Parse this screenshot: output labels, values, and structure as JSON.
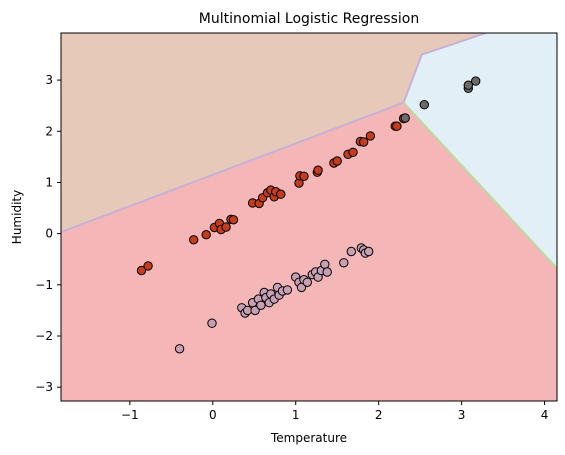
{
  "chart_data": {
    "type": "scatter",
    "title": "Multinomial Logistic Regression",
    "xlabel": "Temperature",
    "ylabel": "Humidity",
    "xlim": [
      -1.83,
      4.15
    ],
    "ylim": [
      -3.27,
      3.92
    ],
    "xticks": [
      "−1",
      "0",
      "1",
      "2",
      "3",
      "4"
    ],
    "xtick_values": [
      -1,
      0,
      1,
      2,
      3,
      4
    ],
    "yticks": [
      "−3",
      "−2",
      "−1",
      "0",
      "1",
      "2",
      "3"
    ],
    "ytick_values": [
      -3,
      -2,
      -1,
      0,
      1,
      2,
      3
    ],
    "grid": false,
    "regions": [
      {
        "color": "#f4b6b6"
      },
      {
        "color": "#e6c9b8"
      },
      {
        "color": "#e2eff6"
      }
    ],
    "series": [
      {
        "color": "#c43c1c",
        "points": [
          [
            -0.86,
            -0.72
          ],
          [
            -0.78,
            -0.63
          ],
          [
            -0.23,
            -0.12
          ],
          [
            -0.08,
            -0.02
          ],
          [
            0.02,
            0.12
          ],
          [
            0.08,
            0.2
          ],
          [
            0.1,
            0.08
          ],
          [
            0.16,
            0.13
          ],
          [
            0.22,
            0.28
          ],
          [
            0.25,
            0.27
          ],
          [
            0.48,
            0.6
          ],
          [
            0.56,
            0.59
          ],
          [
            0.6,
            0.7
          ],
          [
            0.66,
            0.8
          ],
          [
            0.7,
            0.85
          ],
          [
            0.74,
            0.72
          ],
          [
            0.76,
            0.82
          ],
          [
            0.82,
            0.77
          ],
          [
            1.04,
            0.99
          ],
          [
            1.05,
            1.13
          ],
          [
            1.1,
            1.12
          ],
          [
            1.26,
            1.2
          ],
          [
            1.27,
            1.24
          ],
          [
            1.46,
            1.38
          ],
          [
            1.5,
            1.42
          ],
          [
            1.63,
            1.55
          ],
          [
            1.69,
            1.59
          ],
          [
            1.78,
            1.8
          ],
          [
            1.82,
            1.79
          ],
          [
            1.9,
            1.91
          ],
          [
            2.2,
            2.1
          ],
          [
            2.22,
            2.1
          ],
          [
            2.3,
            2.25
          ]
        ]
      },
      {
        "color": "#c8a0b4",
        "points": [
          [
            -0.4,
            -2.25
          ],
          [
            -0.01,
            -1.75
          ],
          [
            0.35,
            -1.45
          ],
          [
            0.39,
            -1.55
          ],
          [
            0.42,
            -1.5
          ],
          [
            0.48,
            -1.35
          ],
          [
            0.51,
            -1.5
          ],
          [
            0.55,
            -1.28
          ],
          [
            0.58,
            -1.4
          ],
          [
            0.62,
            -1.15
          ],
          [
            0.64,
            -1.25
          ],
          [
            0.68,
            -1.35
          ],
          [
            0.7,
            -1.18
          ],
          [
            0.74,
            -1.28
          ],
          [
            0.78,
            -1.05
          ],
          [
            0.8,
            -1.2
          ],
          [
            0.84,
            -1.12
          ],
          [
            0.9,
            -1.1
          ],
          [
            1.0,
            -0.85
          ],
          [
            1.04,
            -0.95
          ],
          [
            1.07,
            -1.05
          ],
          [
            1.1,
            -0.9
          ],
          [
            1.14,
            -0.95
          ],
          [
            1.2,
            -0.8
          ],
          [
            1.24,
            -0.75
          ],
          [
            1.27,
            -0.85
          ],
          [
            1.31,
            -0.72
          ],
          [
            1.35,
            -0.6
          ],
          [
            1.38,
            -0.75
          ],
          [
            1.58,
            -0.57
          ],
          [
            1.67,
            -0.35
          ],
          [
            1.79,
            -0.28
          ],
          [
            1.82,
            -0.32
          ],
          [
            1.84,
            -0.38
          ],
          [
            1.88,
            -0.35
          ]
        ]
      },
      {
        "color": "#6b6b6b",
        "points": [
          [
            2.32,
            2.26
          ],
          [
            2.55,
            2.52
          ],
          [
            3.08,
            2.84
          ],
          [
            3.08,
            2.9
          ],
          [
            3.17,
            2.98
          ]
        ]
      }
    ]
  }
}
